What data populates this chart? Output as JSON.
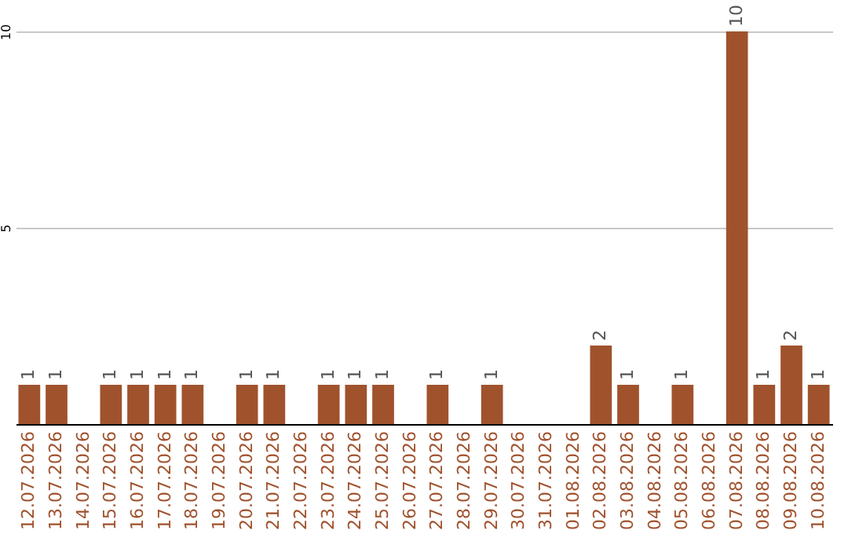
{
  "chart_data": {
    "type": "bar",
    "categories": [
      "12.07.2026",
      "13.07.2026",
      "14.07.2026",
      "15.07.2026",
      "16.07.2026",
      "17.07.2026",
      "18.07.2026",
      "19.07.2026",
      "20.07.2026",
      "21.07.2026",
      "22.07.2026",
      "23.07.2026",
      "24.07.2026",
      "25.07.2026",
      "26.07.2026",
      "27.07.2026",
      "28.07.2026",
      "29.07.2026",
      "30.07.2026",
      "31.07.2026",
      "01.08.2026",
      "02.08.2026",
      "03.08.2026",
      "04.08.2026",
      "05.08.2026",
      "06.08.2026",
      "07.08.2026",
      "08.08.2026",
      "09.08.2026",
      "10.08.2026"
    ],
    "values": [
      1,
      1,
      0,
      1,
      1,
      1,
      1,
      0,
      1,
      1,
      0,
      1,
      1,
      1,
      0,
      1,
      0,
      1,
      0,
      0,
      0,
      2,
      1,
      0,
      1,
      0,
      10,
      1,
      2,
      1
    ],
    "value_labels": [
      "1",
      "1",
      null,
      "1",
      "1",
      "1",
      "1",
      null,
      "1",
      "1",
      null,
      "1",
      "1",
      "1",
      null,
      "1",
      null,
      "1",
      null,
      null,
      null,
      "2",
      "1",
      null,
      "1",
      null,
      "10",
      "1",
      "2",
      "1"
    ],
    "color": "#a0522d",
    "ylim": [
      0,
      10
    ],
    "yticks": [
      5,
      10
    ],
    "grid": "y"
  }
}
